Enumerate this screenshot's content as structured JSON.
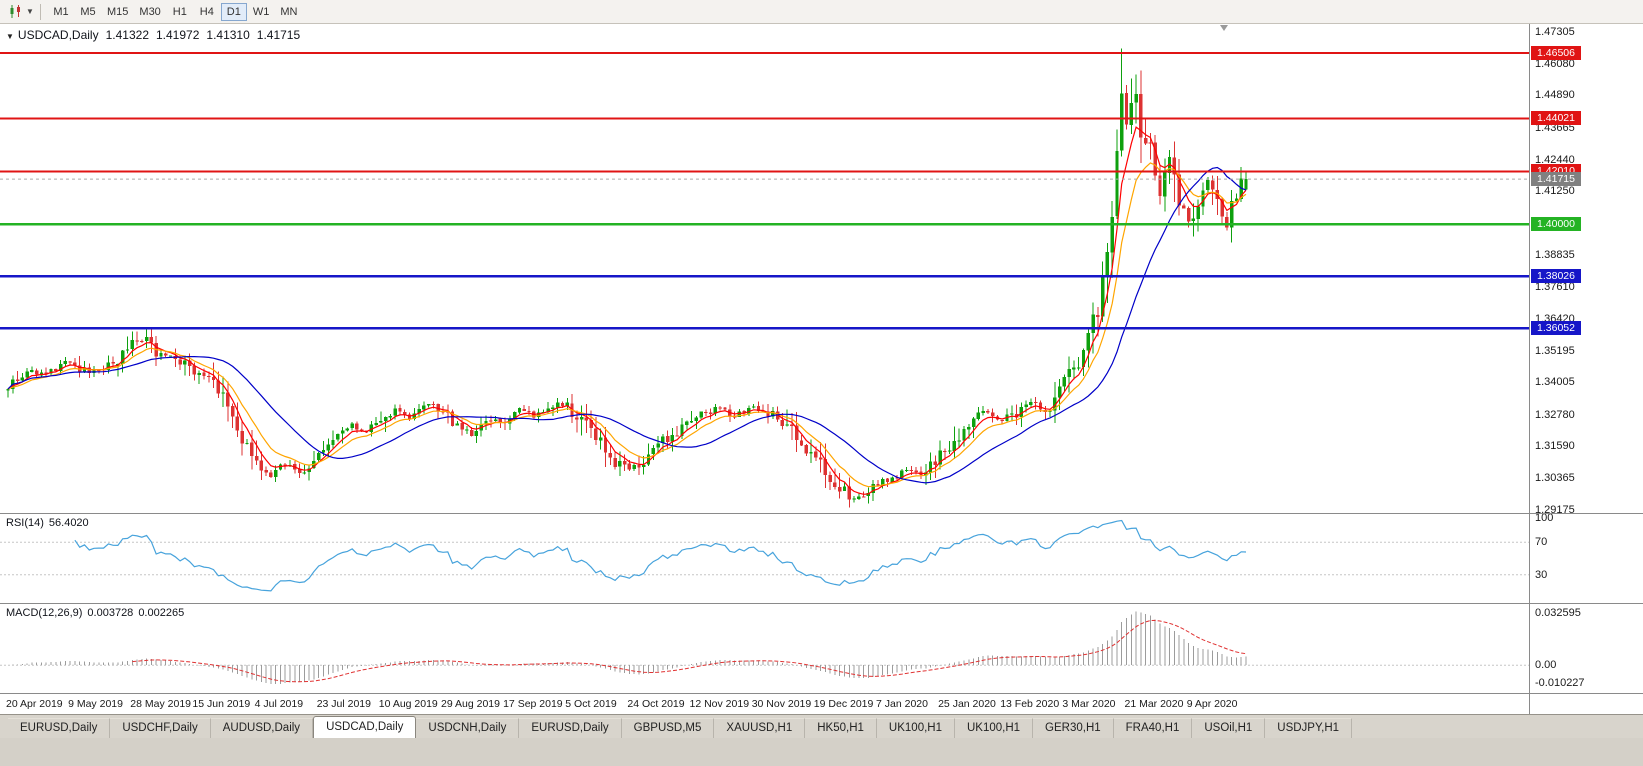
{
  "toolbar": {
    "chart_type_icon": "candlestick-chart-icon",
    "timeframes": [
      "M1",
      "M5",
      "M15",
      "M30",
      "H1",
      "H4",
      "D1",
      "W1",
      "MN"
    ],
    "selected_timeframe": "D1"
  },
  "main_chart": {
    "dropdown_glyph": "▼",
    "title": "USDCAD,Daily",
    "open": "1.41322",
    "high": "1.41972",
    "low": "1.41310",
    "close": "1.41715"
  },
  "rsi_panel": {
    "label": "RSI(14)",
    "value": "56.4020",
    "axis_labels": [
      "100",
      "70",
      "30"
    ]
  },
  "macd_panel": {
    "label": "MACD(12,26,9)",
    "value_main": "0.003728",
    "value_signal": "0.002265",
    "axis_labels": [
      "0.032595",
      "0.00",
      "-0.010227"
    ]
  },
  "price_axis_labels": [
    "1.47305",
    "1.46080",
    "1.44890",
    "1.43665",
    "1.42440",
    "1.41250",
    "1.38835",
    "1.37610",
    "1.36420",
    "1.35195",
    "1.34005",
    "1.32780",
    "1.31590",
    "1.30365",
    "1.29175"
  ],
  "time_axis_labels": [
    "20 Apr 2019",
    "9 May 2019",
    "28 May 2019",
    "15 Jun 2019",
    "4 Jul 2019",
    "23 Jul 2019",
    "10 Aug 2019",
    "29 Aug 2019",
    "17 Sep 2019",
    "5 Oct 2019",
    "24 Oct 2019",
    "12 Nov 2019",
    "30 Nov 2019",
    "19 Dec 2019",
    "7 Jan 2020",
    "25 Jan 2020",
    "13 Feb 2020",
    "3 Mar 2020",
    "21 Mar 2020",
    "9 Apr 2020"
  ],
  "tabs": {
    "items": [
      "EURUSD,Daily",
      "USDCHF,Daily",
      "AUDUSD,Daily",
      "USDCAD,Daily",
      "USDCNH,Daily",
      "EURUSD,Daily",
      "GBPUSD,M5",
      "XAUUSD,H1",
      "HK50,H1",
      "UK100,H1",
      "UK100,H1",
      "GER30,H1",
      "FRA40,H1",
      "USOil,H1",
      "USDJPY,H1"
    ],
    "active_index": 3,
    "active": "USDCAD,Daily"
  },
  "colors": {
    "background": "#ffffff",
    "window_chrome": "#d4d0c8",
    "candle_up": "#0ea00e",
    "candle_down": "#dd3232",
    "level_red": "#e01414",
    "level_green": "#24b324",
    "level_blue": "#1616c8",
    "current_tag_gray": "#808080",
    "ma_fast_red": "#ff0000",
    "ma_medium_orange": "#ffa500",
    "ma_slow_blue": "#0000c8",
    "rsi_line": "#47a3dc",
    "macd_histogram": "#9c9c9c",
    "macd_signal": "#e03232",
    "axis_text": "#1a1a1a"
  },
  "chart_data": {
    "type": "candlestick",
    "symbol": "USDCAD",
    "period": "Daily",
    "bars": 260,
    "bars_per_time_label": 13,
    "price_range": {
      "max": 1.476,
      "min": 1.2905
    },
    "last_bar": {
      "open": 1.41322,
      "high": 1.41972,
      "low": 1.4131,
      "close": 1.41715
    },
    "spike_bar": {
      "index": 233,
      "high": 1.4668
    },
    "spike_zone": [
      226,
      244
    ],
    "close_anchors": [
      [
        0,
        1.339
      ],
      [
        4,
        1.3445
      ],
      [
        8,
        1.343
      ],
      [
        13,
        1.348
      ],
      [
        17,
        1.3435
      ],
      [
        22,
        1.3465
      ],
      [
        26,
        1.354
      ],
      [
        29,
        1.356
      ],
      [
        31,
        1.35
      ],
      [
        35,
        1.3505
      ],
      [
        39,
        1.3435
      ],
      [
        43,
        1.339
      ],
      [
        46,
        1.331
      ],
      [
        50,
        1.314
      ],
      [
        52,
        1.3075
      ],
      [
        55,
        1.3045
      ],
      [
        58,
        1.309
      ],
      [
        61,
        1.306
      ],
      [
        65,
        1.3135
      ],
      [
        69,
        1.3195
      ],
      [
        72,
        1.3235
      ],
      [
        75,
        1.3215
      ],
      [
        78,
        1.325
      ],
      [
        81,
        1.3295
      ],
      [
        84,
        1.3265
      ],
      [
        88,
        1.3315
      ],
      [
        91,
        1.329
      ],
      [
        94,
        1.3235
      ],
      [
        97,
        1.32
      ],
      [
        100,
        1.3245
      ],
      [
        104,
        1.326
      ],
      [
        107,
        1.3295
      ],
      [
        110,
        1.327
      ],
      [
        113,
        1.3305
      ],
      [
        117,
        1.3325
      ],
      [
        120,
        1.3245
      ],
      [
        124,
        1.3175
      ],
      [
        127,
        1.3105
      ],
      [
        130,
        1.307
      ],
      [
        133,
        1.3095
      ],
      [
        136,
        1.3155
      ],
      [
        139,
        1.3205
      ],
      [
        143,
        1.325
      ],
      [
        146,
        1.3285
      ],
      [
        149,
        1.3305
      ],
      [
        152,
        1.3275
      ],
      [
        156,
        1.3305
      ],
      [
        159,
        1.3285
      ],
      [
        162,
        1.3255
      ],
      [
        165,
        1.3185
      ],
      [
        169,
        1.3125
      ],
      [
        172,
        1.3055
      ],
      [
        175,
        1.2985
      ],
      [
        177,
        1.296
      ],
      [
        180,
        1.299
      ],
      [
        182,
        1.301
      ],
      [
        185,
        1.3045
      ],
      [
        188,
        1.307
      ],
      [
        191,
        1.3045
      ],
      [
        195,
        1.312
      ],
      [
        198,
        1.3165
      ],
      [
        201,
        1.3235
      ],
      [
        204,
        1.3285
      ],
      [
        208,
        1.326
      ],
      [
        211,
        1.3285
      ],
      [
        214,
        1.3325
      ],
      [
        217,
        1.3285
      ],
      [
        221,
        1.3395
      ],
      [
        224,
        1.349
      ],
      [
        227,
        1.363
      ],
      [
        229,
        1.376
      ],
      [
        231,
        1.402
      ],
      [
        232,
        1.423
      ],
      [
        233,
        1.451
      ],
      [
        234,
        1.443
      ],
      [
        236,
        1.4485
      ],
      [
        237,
        1.436
      ],
      [
        239,
        1.43
      ],
      [
        241,
        1.413
      ],
      [
        243,
        1.426
      ],
      [
        245,
        1.407
      ],
      [
        247,
        1.4
      ],
      [
        249,
        1.409
      ],
      [
        251,
        1.4165
      ],
      [
        253,
        1.4095
      ],
      [
        255,
        1.399
      ],
      [
        257,
        1.4125
      ],
      [
        259,
        1.41715
      ]
    ],
    "moving_averages": [
      {
        "name": "fast",
        "type": "ema",
        "period": 5,
        "color": "#ff0000"
      },
      {
        "name": "medium",
        "type": "ema",
        "period": 10,
        "color": "#ffa500"
      },
      {
        "name": "slow",
        "type": "sma",
        "period": 22,
        "color": "#0000c8"
      }
    ],
    "horizontal_lines": [
      {
        "price": 1.46506,
        "label": "1.46506",
        "color": "#e01414",
        "width": 2
      },
      {
        "price": 1.44021,
        "label": "1.44021",
        "color": "#e01414",
        "width": 2
      },
      {
        "price": 1.4201,
        "label": "1.42010",
        "color": "#e01414",
        "width": 2
      },
      {
        "price": 1.4,
        "label": "1.40000",
        "color": "#24b324",
        "width": 2.5
      },
      {
        "price": 1.38026,
        "label": "1.38026",
        "color": "#1616c8",
        "width": 2.5
      },
      {
        "price": 1.36052,
        "label": "1.36052",
        "color": "#1616c8",
        "width": 2.5
      }
    ],
    "current_price": {
      "price": 1.41715,
      "label": "1.41715",
      "tag_color": "#808080"
    },
    "rsi": {
      "period": 14,
      "value": 56.402,
      "levels": [
        70,
        30
      ],
      "color": "#47a3dc",
      "scale_max": 100,
      "scale_min": 0
    },
    "macd": {
      "fast": 12,
      "slow": 26,
      "signal": 9,
      "macd_value": 0.003728,
      "signal_value": 0.002265,
      "axis_max": 0.032595,
      "axis_min": -0.010227,
      "histogram_color": "#9c9c9c",
      "signal_color": "#e03232"
    }
  }
}
